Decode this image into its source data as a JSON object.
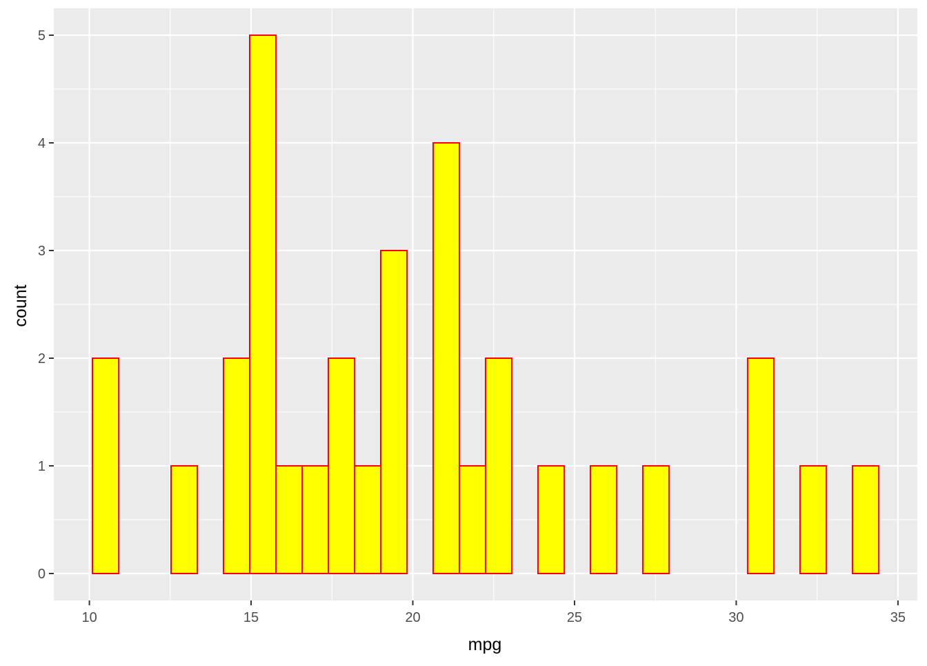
{
  "chart_data": {
    "type": "bar",
    "subtype": "histogram",
    "xlabel": "mpg",
    "ylabel": "count",
    "xlim": [
      8.9,
      35.6
    ],
    "ylim": [
      -0.25,
      5.25
    ],
    "x_ticks": [
      10,
      15,
      20,
      25,
      30,
      35
    ],
    "y_ticks": [
      0,
      1,
      2,
      3,
      4,
      5
    ],
    "grid": true,
    "bin_width": 0.8103,
    "bins_start": 10.0948,
    "values": [
      2,
      0,
      0,
      1,
      0,
      2,
      5,
      1,
      1,
      2,
      1,
      3,
      0,
      4,
      1,
      2,
      0,
      1,
      0,
      1,
      0,
      1,
      0,
      0,
      0,
      2,
      0,
      1,
      0,
      1
    ],
    "colors": {
      "panel_background": "#ebebeb",
      "grid_major": "#ffffff",
      "bar_fill": "#ffff00",
      "bar_outline": "#ff0000",
      "tick_text": "#4d4d4d",
      "axis_title": "#000000"
    }
  }
}
